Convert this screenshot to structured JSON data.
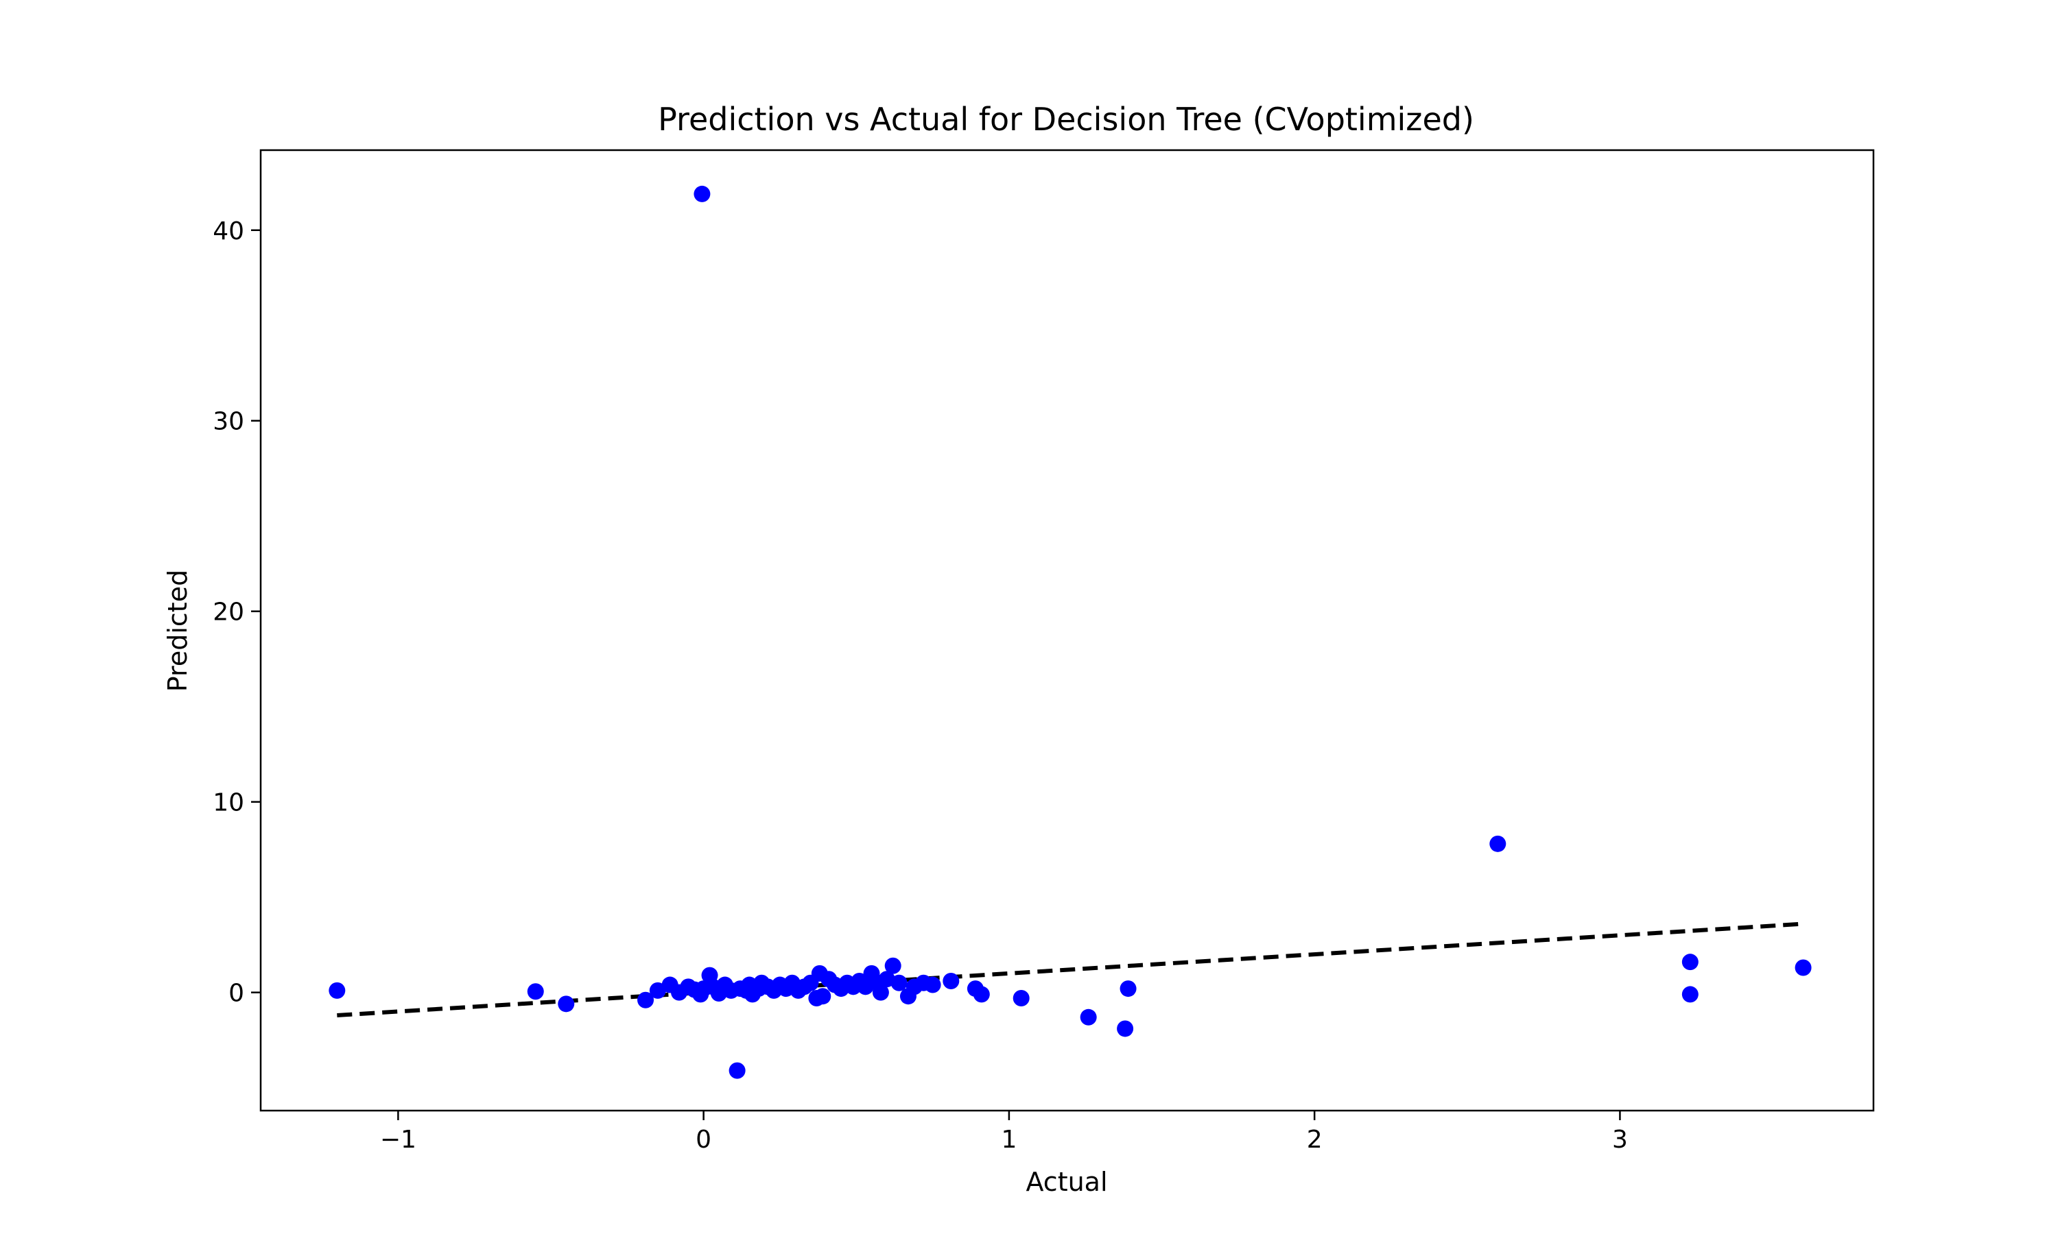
{
  "chart_data": {
    "type": "scatter",
    "title": "Prediction vs Actual for Decision Tree (CVoptimized)",
    "xlabel": "Actual",
    "ylabel": "Predicted",
    "xlim": [
      -1.45,
      3.83
    ],
    "ylim": [
      -6.2,
      44.2
    ],
    "xticks": [
      -1,
      0,
      1,
      2,
      3
    ],
    "xtick_labels": [
      "−1",
      "0",
      "1",
      "2",
      "3"
    ],
    "yticks": [
      0,
      10,
      20,
      30,
      40
    ],
    "ytick_labels": [
      "0",
      "10",
      "20",
      "30",
      "40"
    ],
    "grid": false,
    "colors": {
      "points": "#0000ff",
      "reference_line": "#000000"
    },
    "reference_line": {
      "style": "dashed",
      "x": [
        -1.2,
        3.6
      ],
      "y": [
        -1.2,
        3.6
      ]
    },
    "points": [
      {
        "x": -1.2,
        "y": 0.1
      },
      {
        "x": -0.55,
        "y": 0.05
      },
      {
        "x": -0.45,
        "y": -0.6
      },
      {
        "x": -0.19,
        "y": -0.4
      },
      {
        "x": -0.15,
        "y": 0.1
      },
      {
        "x": -0.11,
        "y": 0.4
      },
      {
        "x": -0.08,
        "y": 0.0
      },
      {
        "x": -0.05,
        "y": 0.3
      },
      {
        "x": -0.03,
        "y": 0.15
      },
      {
        "x": -0.01,
        "y": -0.1
      },
      {
        "x": -0.005,
        "y": 41.9
      },
      {
        "x": 0.0,
        "y": 0.2
      },
      {
        "x": 0.02,
        "y": 0.9
      },
      {
        "x": 0.03,
        "y": 0.3
      },
      {
        "x": 0.05,
        "y": -0.05
      },
      {
        "x": 0.07,
        "y": 0.4
      },
      {
        "x": 0.09,
        "y": 0.1
      },
      {
        "x": 0.11,
        "y": -4.1
      },
      {
        "x": 0.12,
        "y": 0.2
      },
      {
        "x": 0.14,
        "y": 0.1
      },
      {
        "x": 0.15,
        "y": 0.4
      },
      {
        "x": 0.16,
        "y": -0.1
      },
      {
        "x": 0.18,
        "y": 0.2
      },
      {
        "x": 0.19,
        "y": 0.5
      },
      {
        "x": 0.21,
        "y": 0.3
      },
      {
        "x": 0.23,
        "y": 0.1
      },
      {
        "x": 0.25,
        "y": 0.4
      },
      {
        "x": 0.27,
        "y": 0.2
      },
      {
        "x": 0.29,
        "y": 0.5
      },
      {
        "x": 0.31,
        "y": 0.1
      },
      {
        "x": 0.33,
        "y": 0.3
      },
      {
        "x": 0.35,
        "y": 0.5
      },
      {
        "x": 0.37,
        "y": -0.3
      },
      {
        "x": 0.38,
        "y": 1.0
      },
      {
        "x": 0.39,
        "y": -0.2
      },
      {
        "x": 0.41,
        "y": 0.7
      },
      {
        "x": 0.43,
        "y": 0.4
      },
      {
        "x": 0.45,
        "y": 0.2
      },
      {
        "x": 0.47,
        "y": 0.5
      },
      {
        "x": 0.49,
        "y": 0.3
      },
      {
        "x": 0.51,
        "y": 0.6
      },
      {
        "x": 0.53,
        "y": 0.3
      },
      {
        "x": 0.55,
        "y": 1.0
      },
      {
        "x": 0.57,
        "y": 0.5
      },
      {
        "x": 0.58,
        "y": 0.0
      },
      {
        "x": 0.6,
        "y": 0.7
      },
      {
        "x": 0.62,
        "y": 1.4
      },
      {
        "x": 0.64,
        "y": 0.5
      },
      {
        "x": 0.67,
        "y": -0.2
      },
      {
        "x": 0.69,
        "y": 0.3
      },
      {
        "x": 0.72,
        "y": 0.5
      },
      {
        "x": 0.75,
        "y": 0.4
      },
      {
        "x": 0.81,
        "y": 0.6
      },
      {
        "x": 0.89,
        "y": 0.2
      },
      {
        "x": 0.91,
        "y": -0.1
      },
      {
        "x": 1.04,
        "y": -0.3
      },
      {
        "x": 1.26,
        "y": -1.3
      },
      {
        "x": 1.38,
        "y": -1.9
      },
      {
        "x": 1.39,
        "y": 0.2
      },
      {
        "x": 2.6,
        "y": 7.8
      },
      {
        "x": 3.23,
        "y": 1.6
      },
      {
        "x": 3.23,
        "y": -0.1
      },
      {
        "x": 3.6,
        "y": 1.3
      }
    ]
  }
}
